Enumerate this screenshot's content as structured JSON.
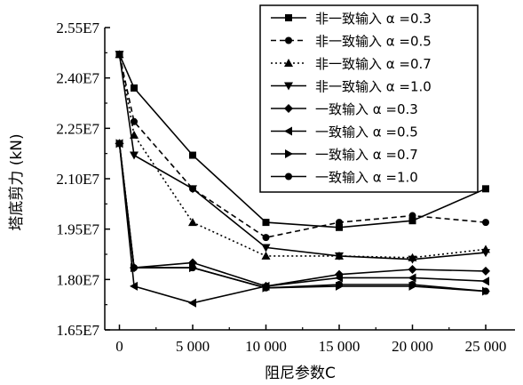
{
  "chart_data": {
    "type": "line",
    "xlabel": "阻尼参数C",
    "ylabel": "塔底剪力 (kN)",
    "x": [
      0,
      1000,
      5000,
      10000,
      15000,
      20000,
      25000
    ],
    "x_tick_values": [
      0,
      5000,
      10000,
      15000,
      20000,
      25000
    ],
    "x_tick_labels": [
      "0",
      "5 000",
      "10 000",
      "15 000",
      "20 000",
      "25 000"
    ],
    "xlim": [
      -1000,
      27000
    ],
    "y_tick_values": [
      16500000,
      18000000,
      19500000,
      21000000,
      22500000,
      24000000,
      25500000
    ],
    "y_tick_labels": [
      "1.65E7",
      "1.80E7",
      "1.95E7",
      "2.10E7",
      "2.25E7",
      "2.40E7",
      "2.55E7"
    ],
    "ylim": [
      16500000,
      25500000
    ],
    "grid": false,
    "legend_position": "top-right",
    "series": [
      {
        "name": "非一致输入 α =0.3",
        "marker": "square",
        "dash": "solid",
        "values": [
          24700000,
          23700000,
          21700000,
          19700000,
          19550000,
          19750000,
          20700000
        ]
      },
      {
        "name": "非一致输入 α =0.5",
        "marker": "circle",
        "dash": "dashed",
        "values": [
          24700000,
          22700000,
          20700000,
          19250000,
          19700000,
          19900000,
          19700000
        ]
      },
      {
        "name": "非一致输入 α =0.7",
        "marker": "triangle-up",
        "dash": "dotted",
        "values": [
          24700000,
          22300000,
          19700000,
          18700000,
          18700000,
          18650000,
          18900000
        ]
      },
      {
        "name": "非一致输入 α =1.0",
        "marker": "triangle-down",
        "dash": "solid",
        "values": [
          24700000,
          21700000,
          20700000,
          18950000,
          18700000,
          18600000,
          18800000
        ]
      },
      {
        "name": "一致输入 α =0.3",
        "marker": "diamond",
        "dash": "solid",
        "values": [
          22050000,
          18350000,
          18500000,
          17800000,
          18150000,
          18300000,
          18250000
        ]
      },
      {
        "name": "一致输入 α =0.5",
        "marker": "triangle-left",
        "dash": "solid",
        "values": [
          22050000,
          17800000,
          17300000,
          17800000,
          18050000,
          18050000,
          17950000
        ]
      },
      {
        "name": "一致输入 α =0.7",
        "marker": "triangle-right",
        "dash": "solid",
        "values": [
          22050000,
          18350000,
          18350000,
          17750000,
          17800000,
          17800000,
          17650000
        ]
      },
      {
        "name": "一致输入 α =1.0",
        "marker": "circle",
        "dash": "solid",
        "values": [
          22050000,
          18350000,
          18350000,
          17750000,
          17850000,
          17850000,
          17650000
        ]
      }
    ]
  }
}
